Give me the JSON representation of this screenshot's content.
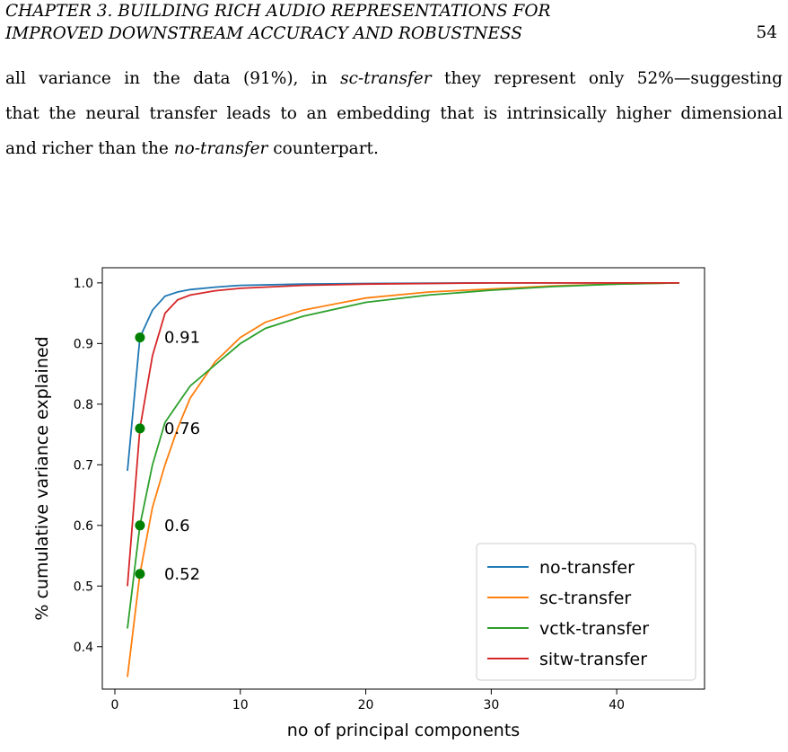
{
  "header": {
    "line1": "CHAPTER 3.   BUILDING RICH AUDIO REPRESENTATIONS FOR",
    "line2": "IMPROVED DOWNSTREAM ACCURACY AND ROBUSTNESS",
    "page_number": "54"
  },
  "body": {
    "l1_a": "all variance in the data (91%), in ",
    "l1_em": "sc-transfer",
    "l1_b": " they represent only 52%—suggesting",
    "l2": "that the neural transfer leads to an embedding that is intrinsically higher dimensional",
    "l3_a": "and richer than the ",
    "l3_em": "no-transfer",
    "l3_b": " counterpart."
  },
  "chart_data": {
    "type": "line",
    "title": "",
    "xlabel": "no of principal components",
    "ylabel": "% cumulative variance explained",
    "xlim": [
      -1,
      47
    ],
    "ylim": [
      0.33,
      1.025
    ],
    "xticks": [
      0,
      10,
      20,
      30,
      40
    ],
    "yticks": [
      0.4,
      0.5,
      0.6,
      0.7,
      0.8,
      0.9,
      1.0
    ],
    "ytick_labels": [
      "0.4",
      "0.5",
      "0.6",
      "0.7",
      "0.8",
      "0.9",
      "1.0"
    ],
    "grid": false,
    "legend_position": "bottom-right",
    "series": [
      {
        "name": "no-transfer",
        "color": "#1f77b4",
        "x": [
          1,
          2,
          3,
          4,
          5,
          6,
          8,
          10,
          15,
          20,
          30,
          45
        ],
        "y": [
          0.69,
          0.91,
          0.955,
          0.978,
          0.985,
          0.989,
          0.993,
          0.996,
          0.998,
          0.999,
          1.0,
          1.0
        ]
      },
      {
        "name": "sc-transfer",
        "color": "#ff7f0e",
        "x": [
          1,
          2,
          3,
          4,
          5,
          6,
          8,
          10,
          12,
          15,
          20,
          25,
          30,
          35,
          40,
          45
        ],
        "y": [
          0.35,
          0.52,
          0.63,
          0.7,
          0.76,
          0.81,
          0.87,
          0.91,
          0.935,
          0.955,
          0.975,
          0.985,
          0.99,
          0.995,
          0.998,
          1.0
        ]
      },
      {
        "name": "vctk-transfer",
        "color": "#2ca02c",
        "x": [
          1,
          2,
          3,
          4,
          5,
          6,
          8,
          10,
          12,
          15,
          20,
          25,
          30,
          35,
          40,
          45
        ],
        "y": [
          0.43,
          0.6,
          0.7,
          0.77,
          0.8,
          0.83,
          0.865,
          0.9,
          0.925,
          0.945,
          0.968,
          0.98,
          0.988,
          0.994,
          0.998,
          1.0
        ]
      },
      {
        "name": "sitw-transfer",
        "color": "#d62728",
        "x": [
          1,
          2,
          3,
          4,
          5,
          6,
          8,
          10,
          15,
          20,
          30,
          45
        ],
        "y": [
          0.5,
          0.76,
          0.88,
          0.95,
          0.972,
          0.98,
          0.987,
          0.991,
          0.996,
          0.998,
          1.0,
          1.0
        ]
      }
    ],
    "markers": {
      "color": "#008000",
      "points": [
        {
          "x": 2,
          "y": 0.91,
          "label": "0.91"
        },
        {
          "x": 2,
          "y": 0.76,
          "label": "0.76"
        },
        {
          "x": 2,
          "y": 0.6,
          "label": "0.6"
        },
        {
          "x": 2,
          "y": 0.52,
          "label": "0.52"
        }
      ]
    }
  }
}
